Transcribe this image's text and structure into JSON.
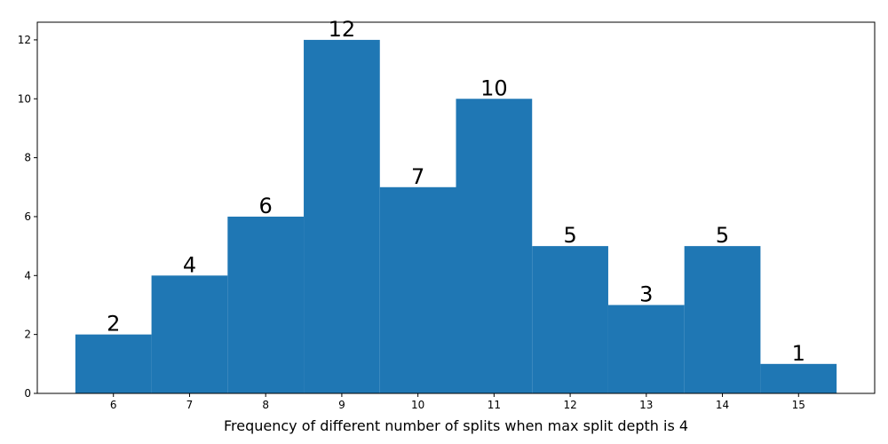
{
  "chart_data": {
    "type": "bar",
    "categories": [
      "6",
      "7",
      "8",
      "9",
      "10",
      "11",
      "12",
      "13",
      "14",
      "15"
    ],
    "x": [
      6,
      7,
      8,
      9,
      10,
      11,
      12,
      13,
      14,
      15
    ],
    "values": [
      2,
      4,
      6,
      12,
      7,
      10,
      5,
      3,
      5,
      1
    ],
    "data_labels": [
      "2",
      "4",
      "6",
      "12",
      "7",
      "10",
      "5",
      "3",
      "5",
      "1"
    ],
    "title": "",
    "xlabel": "Frequency of different number of splits when max split depth is 4",
    "ylabel": "",
    "xlim": [
      5,
      16
    ],
    "ylim": [
      0,
      12.6
    ],
    "yticks": [
      0,
      2,
      4,
      6,
      8,
      10,
      12
    ],
    "bar_color": "#1f77b4",
    "grid": false,
    "legend": "none"
  }
}
